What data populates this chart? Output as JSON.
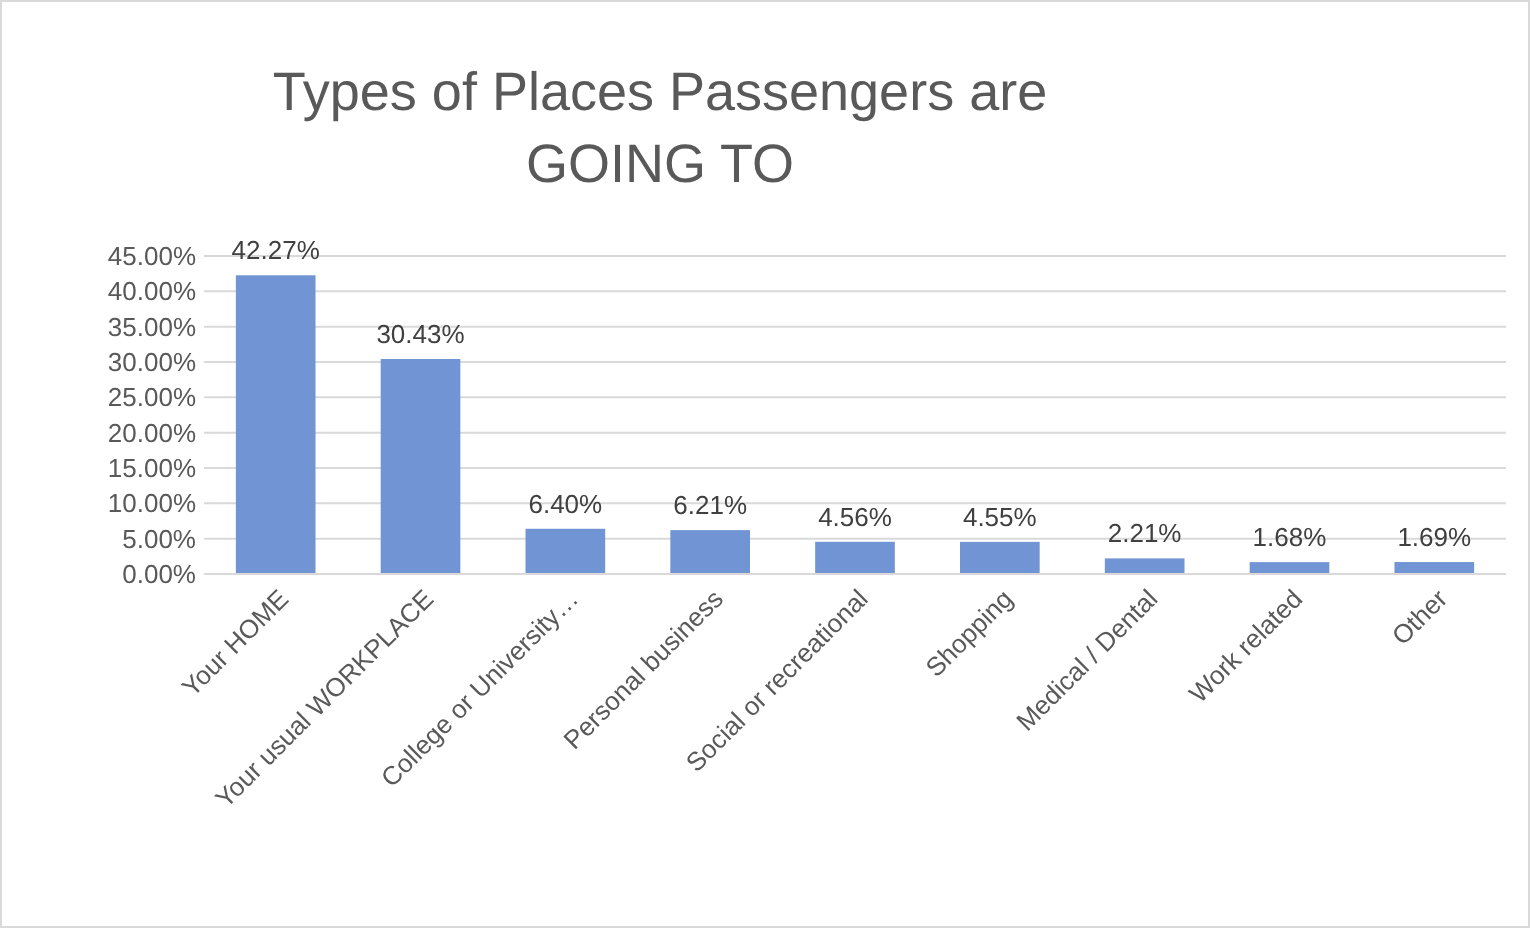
{
  "chart_data": {
    "type": "bar",
    "title": "Types of Places Passengers are GOING TO",
    "categories": [
      "Your HOME",
      "Your usual WORKPLACE",
      "College or University…",
      "Personal business",
      "Social or recreational",
      "Shopping",
      "Medical / Dental",
      "Work related",
      "Other"
    ],
    "values": [
      42.27,
      30.43,
      6.4,
      6.21,
      4.56,
      4.55,
      2.21,
      1.68,
      1.69
    ],
    "value_labels": [
      "42.27%",
      "30.43%",
      "6.40%",
      "6.21%",
      "4.56%",
      "4.55%",
      "2.21%",
      "1.68%",
      "1.69%"
    ],
    "color": "#7094d4",
    "ylim": [
      0,
      45
    ],
    "yticks": [
      {
        "value": 0,
        "label": "0.00%"
      },
      {
        "value": 5,
        "label": "5.00%"
      },
      {
        "value": 10,
        "label": "10.00%"
      },
      {
        "value": 15,
        "label": "15.00%"
      },
      {
        "value": 20,
        "label": "20.00%"
      },
      {
        "value": 25,
        "label": "25.00%"
      },
      {
        "value": 30,
        "label": "30.00%"
      },
      {
        "value": 35,
        "label": "35.00%"
      },
      {
        "value": 40,
        "label": "40.00%"
      },
      {
        "value": 45,
        "label": "45.00%"
      }
    ],
    "grid": "y"
  }
}
